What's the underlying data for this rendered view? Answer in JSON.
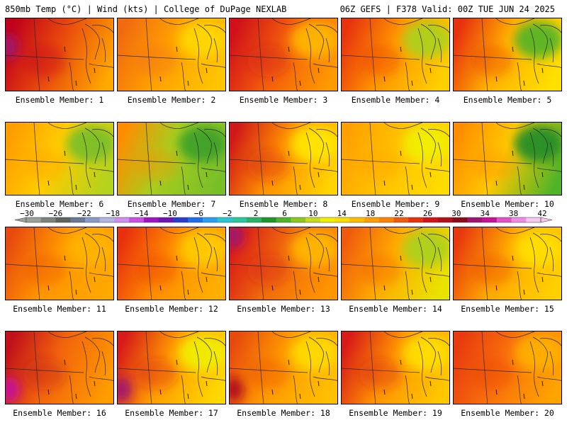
{
  "header": {
    "left": "850mb Temp (°C) | Wind (kts) | College of DuPage NEXLAB",
    "right": "06Z GEFS | F378 Valid: 00Z TUE JUN 24 2025"
  },
  "member_label_prefix": "Ensemble Member:",
  "members": [
    {
      "id": 1,
      "label": "Ensemble Member: 1",
      "base": "#e8460e",
      "west": "#c0001a",
      "east": "#ffa800",
      "hot": "#a0136e",
      "hotSpot": "w",
      "cool": null
    },
    {
      "id": 2,
      "label": "Ensemble Member: 2",
      "base": "#ffa000",
      "west": "#f06a10",
      "east": "#ffc400",
      "hot": null,
      "hotSpot": null,
      "cool": "#ffd800"
    },
    {
      "id": 3,
      "label": "Ensemble Member: 3",
      "base": "#f25a0c",
      "west": "#d0101a",
      "east": "#ff9a00",
      "hot": null,
      "hotSpot": null,
      "cool": "#ffb800"
    },
    {
      "id": 4,
      "label": "Ensemble Member: 4",
      "base": "#ff9600",
      "west": "#e8320e",
      "east": "#ffd000",
      "hot": null,
      "hotSpot": null,
      "cool": "#aad21e"
    },
    {
      "id": 5,
      "label": "Ensemble Member: 5",
      "base": "#ffb000",
      "west": "#e8300e",
      "east": "#ffe000",
      "hot": null,
      "hotSpot": null,
      "cool": "#50b428"
    },
    {
      "id": 6,
      "label": "Ensemble Member: 6",
      "base": "#ffcc00",
      "west": "#ff9c00",
      "east": "#b4d21e",
      "hot": null,
      "hotSpot": null,
      "cool": "#78be28"
    },
    {
      "id": 7,
      "label": "Ensemble Member: 7",
      "base": "#a8cd1e",
      "west": "#ff8c00",
      "east": "#78be28",
      "hot": null,
      "hotSpot": null,
      "cool": "#3ca028"
    },
    {
      "id": 8,
      "label": "Ensemble Member: 8",
      "base": "#ff9000",
      "west": "#d01818",
      "east": "#ffd400",
      "hot": null,
      "hotSpot": null,
      "cool": "#ffe800"
    },
    {
      "id": 9,
      "label": "Ensemble Member: 9",
      "base": "#ffc000",
      "west": "#ffa000",
      "east": "#ffdc00",
      "hot": null,
      "hotSpot": null,
      "cool": "#f0f000"
    },
    {
      "id": 10,
      "label": "Ensemble Member: 10",
      "base": "#ffc800",
      "west": "#ff8c00",
      "east": "#50b428",
      "hot": null,
      "hotSpot": null,
      "cool": "#1e8c28"
    },
    {
      "id": 11,
      "label": "Ensemble Member: 11",
      "base": "#ff9600",
      "west": "#e84a0e",
      "east": "#ffa800",
      "hot": null,
      "hotSpot": null,
      "cool": "#ffb400"
    },
    {
      "id": 12,
      "label": "Ensemble Member: 12",
      "base": "#ff8c00",
      "west": "#e8300e",
      "east": "#ffb000",
      "hot": null,
      "hotSpot": null,
      "cool": "#ffcc00"
    },
    {
      "id": 13,
      "label": "Ensemble Member: 13",
      "base": "#f06a0c",
      "west": "#d81818",
      "east": "#ff9600",
      "hot": "#a0136e",
      "hotSpot": "nw",
      "cool": "#ffb800"
    },
    {
      "id": 14,
      "label": "Ensemble Member: 14",
      "base": "#ffac00",
      "west": "#f05a0c",
      "east": "#e8e400",
      "hot": null,
      "hotSpot": null,
      "cool": "#a8d21e"
    },
    {
      "id": 15,
      "label": "Ensemble Member: 15",
      "base": "#ffa800",
      "west": "#e8380e",
      "east": "#ffd000",
      "hot": null,
      "hotSpot": null,
      "cool": "#ffe000"
    },
    {
      "id": 16,
      "label": "Ensemble Member: 16",
      "base": "#f2640c",
      "west": "#c0101a",
      "east": "#ff9c00",
      "hot": "#c8109a",
      "hotSpot": "sw",
      "cool": null
    },
    {
      "id": 17,
      "label": "Ensemble Member: 17",
      "base": "#ff9c00",
      "west": "#d81a18",
      "east": "#ffd800",
      "hot": "#a0136e",
      "hotSpot": "sw",
      "cool": "#f0f000"
    },
    {
      "id": 18,
      "label": "Ensemble Member: 18",
      "base": "#ff9a00",
      "west": "#e84a0e",
      "east": "#ffc000",
      "hot": "#b00f1a",
      "hotSpot": "sw",
      "cool": "#ffdc00"
    },
    {
      "id": 19,
      "label": "Ensemble Member: 19",
      "base": "#ff9400",
      "west": "#d81a18",
      "east": "#ffc800",
      "hot": null,
      "hotSpot": null,
      "cool": "#ffe000"
    },
    {
      "id": 20,
      "label": "Ensemble Member: 20",
      "base": "#f8700c",
      "west": "#e83a0e",
      "east": "#ffa400",
      "hot": null,
      "hotSpot": null,
      "cool": "#ffb000"
    }
  ],
  "colorbar": {
    "tick_labels": [
      "−30",
      "−26",
      "−22",
      "−18",
      "−14",
      "−10",
      "−6",
      "−2",
      "2",
      "6",
      "10",
      "14",
      "18",
      "22",
      "26",
      "30",
      "34",
      "38",
      "42"
    ],
    "colors": [
      "#9aa09a",
      "#7c827c",
      "#5e645e",
      "#6a7896",
      "#8a9ac8",
      "#b4b4e6",
      "#d28cf0",
      "#c850e6",
      "#a014c8",
      "#6e14b4",
      "#283cd2",
      "#1e6ef0",
      "#28a0f0",
      "#28c8d2",
      "#28c8a0",
      "#28b464",
      "#1e9628",
      "#50b428",
      "#8cc81e",
      "#c8dc1e",
      "#f0f000",
      "#ffdc00",
      "#ffbe00",
      "#ffa000",
      "#ff8200",
      "#f05a0c",
      "#e6320e",
      "#d2141a",
      "#b4101a",
      "#8c0a1e",
      "#a0136e",
      "#c8109a",
      "#e650c8",
      "#f08ce6",
      "#f5c8f0"
    ]
  }
}
